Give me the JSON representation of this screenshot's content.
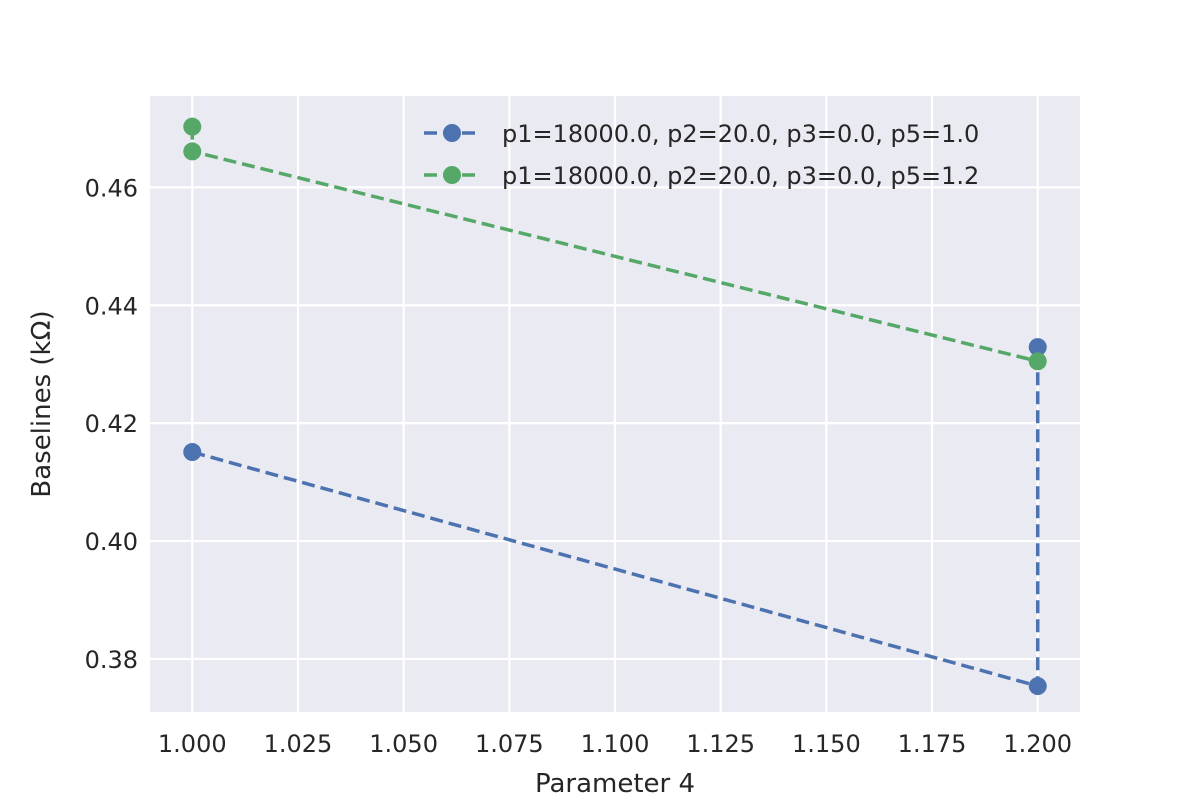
{
  "chart_data": {
    "type": "line",
    "title": "",
    "xlabel": "Parameter 4",
    "ylabel": "Baselines (kΩ)",
    "xlim": [
      0.99,
      1.21
    ],
    "ylim": [
      0.371,
      0.4755
    ],
    "xticks": [
      1.0,
      1.025,
      1.05,
      1.075,
      1.1,
      1.125,
      1.15,
      1.175,
      1.2
    ],
    "xtick_labels": [
      "1.000",
      "1.025",
      "1.050",
      "1.075",
      "1.100",
      "1.125",
      "1.150",
      "1.175",
      "1.200"
    ],
    "yticks": [
      0.38,
      0.4,
      0.42,
      0.44,
      0.46
    ],
    "ytick_labels": [
      "0.38",
      "0.40",
      "0.42",
      "0.44",
      "0.46"
    ],
    "grid": true,
    "legend_position": "top-right",
    "series": [
      {
        "name": "p1=18000.0, p2=20.0, p3=0.0, p5=1.0",
        "color": "#4c72b0",
        "linestyle": "dashed",
        "marker": "circle",
        "x": [
          1.0,
          1.2,
          1.2
        ],
        "y": [
          0.4151,
          0.3754,
          0.4329
        ]
      },
      {
        "name": "p1=18000.0, p2=20.0, p3=0.0, p5=1.2",
        "color": "#55a868",
        "linestyle": "dashed",
        "marker": "circle",
        "x": [
          1.0,
          1.0,
          1.2
        ],
        "y": [
          0.4703,
          0.4661,
          0.4305
        ]
      }
    ]
  }
}
